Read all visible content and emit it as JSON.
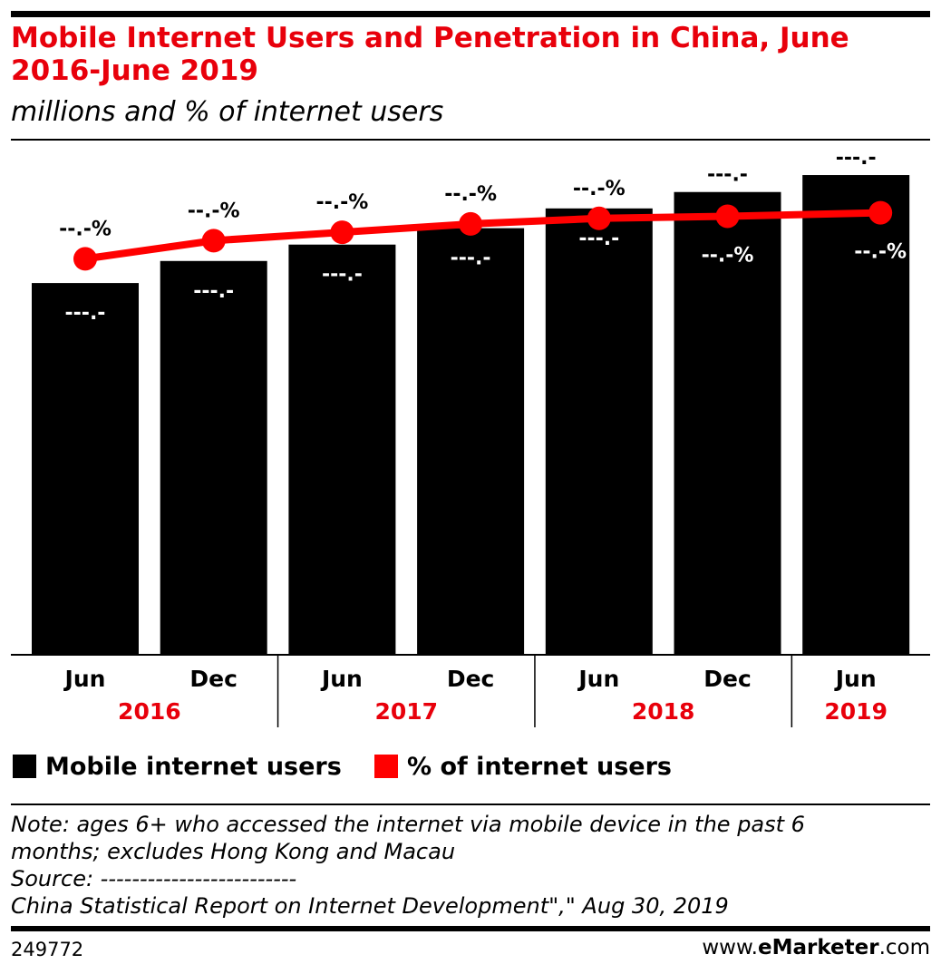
{
  "title": "Mobile Internet Users and Penetration in China, June 2016-June 2019",
  "subtitle": "millions and % of internet users",
  "legend": {
    "bars": "Mobile internet users",
    "line": "% of internet users"
  },
  "colors": {
    "bars": "#000000",
    "line": "#ff0000",
    "accent": "#e8000b"
  },
  "chart_data": {
    "type": "bar",
    "categories": [
      "Jun",
      "Dec",
      "Jun",
      "Dec",
      "Jun",
      "Dec",
      "Jun"
    ],
    "groups": [
      {
        "label": "2016",
        "categories": [
          0,
          1
        ]
      },
      {
        "label": "2017",
        "categories": [
          2,
          3
        ]
      },
      {
        "label": "2018",
        "categories": [
          4,
          5
        ]
      },
      {
        "label": "2019",
        "categories": [
          6
        ]
      }
    ],
    "series": [
      {
        "name": "Mobile internet users",
        "type": "bar",
        "values": [
          656,
          695,
          724,
          753,
          788,
          817,
          847
        ],
        "labels": [
          "---.-",
          "---.-",
          "---.-",
          "---.-",
          "---.-",
          "---.-",
          "---.-"
        ]
      },
      {
        "name": "% of internet users",
        "type": "line",
        "values": [
          92.5,
          95.1,
          96.3,
          97.5,
          98.3,
          98.6,
          99.1
        ],
        "labels": [
          "--.-%",
          "--.-%",
          "--.-%",
          "--.-%",
          "--.-%",
          "--.-%",
          "--.-%"
        ]
      }
    ],
    "ylim": [
      0,
      900
    ],
    "grid": false,
    "legend_position": "bottom-left"
  },
  "note": {
    "lines": [
      "Note: ages 6+ who accessed the internet via mobile device in the past 6",
      "months; excludes Hong Kong and Macau",
      "Source: -------------------------",
      "China Statistical Report on Internet Development\",\" Aug 30, 2019"
    ]
  },
  "footer": {
    "chart_id": "249772",
    "brand_prefix": "www.",
    "brand_bold": "eMarketer",
    "brand_suffix": ".com"
  }
}
